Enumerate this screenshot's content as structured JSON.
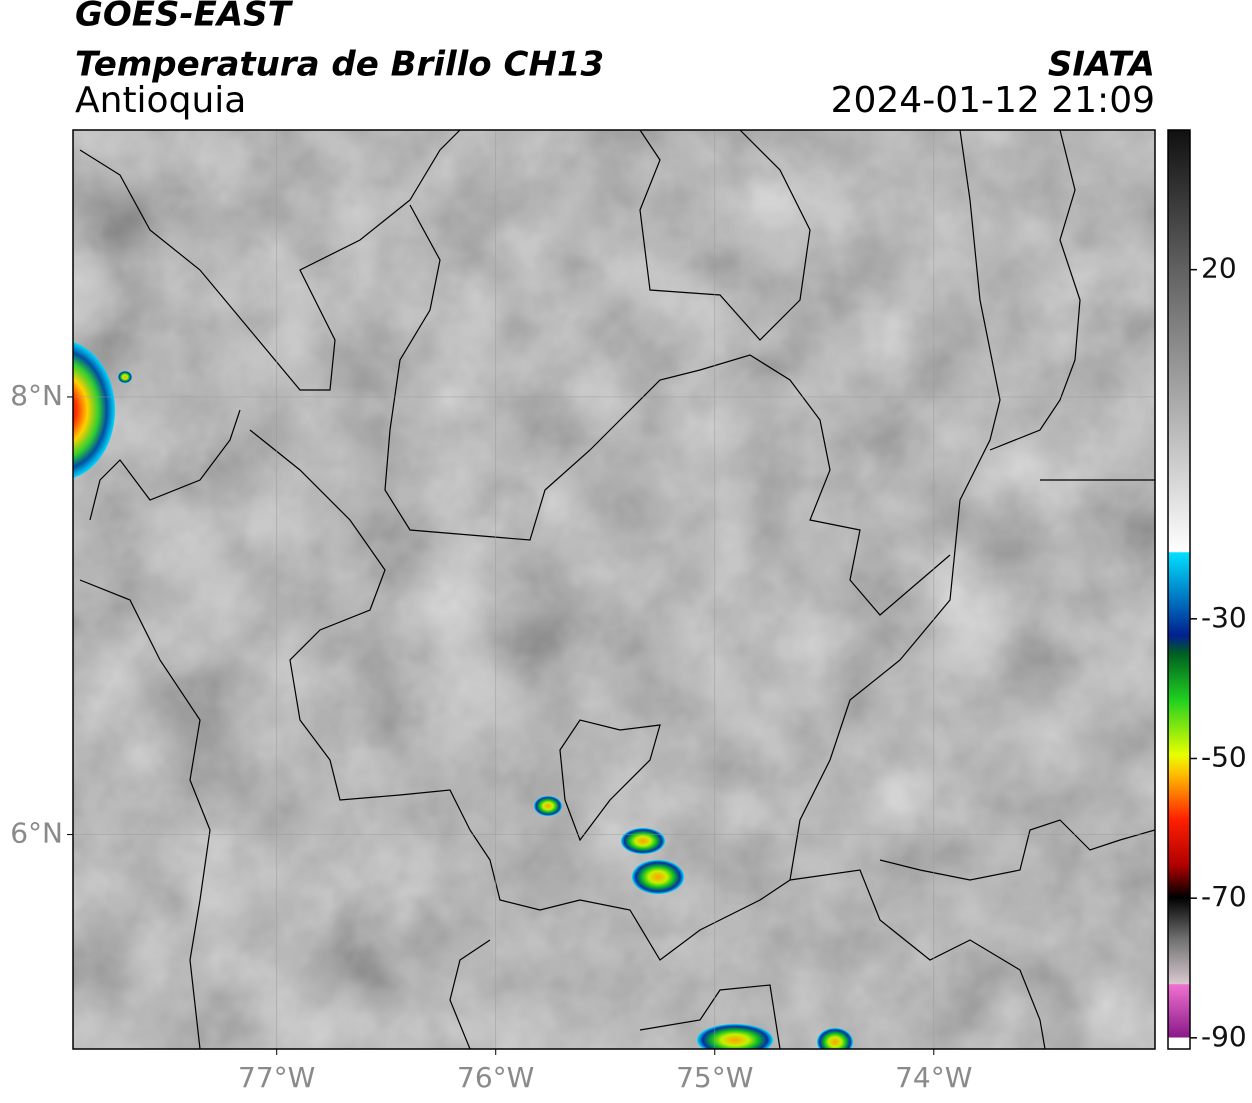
{
  "header": {
    "satellite": "GOES-EAST",
    "product": "Temperatura de Brillo CH13",
    "region": "Antioquia",
    "source": "SIATA",
    "datetime": "2024-01-12 21:09"
  },
  "map": {
    "xlim": [
      -77.93,
      -72.99
    ],
    "ylim": [
      5.02,
      9.22
    ],
    "xticks": [
      {
        "value": -77,
        "label": "77°W"
      },
      {
        "value": -76,
        "label": "76°W"
      },
      {
        "value": -75,
        "label": "75°W"
      },
      {
        "value": -74,
        "label": "74°W"
      }
    ],
    "yticks": [
      {
        "value": 8,
        "label": "8°N"
      },
      {
        "value": 6,
        "label": "6°N"
      }
    ],
    "grid": true
  },
  "colorbar": {
    "lim": [
      -91.6,
      40
    ],
    "ticks": [
      20,
      -30,
      -50,
      -70,
      -90
    ]
  }
}
